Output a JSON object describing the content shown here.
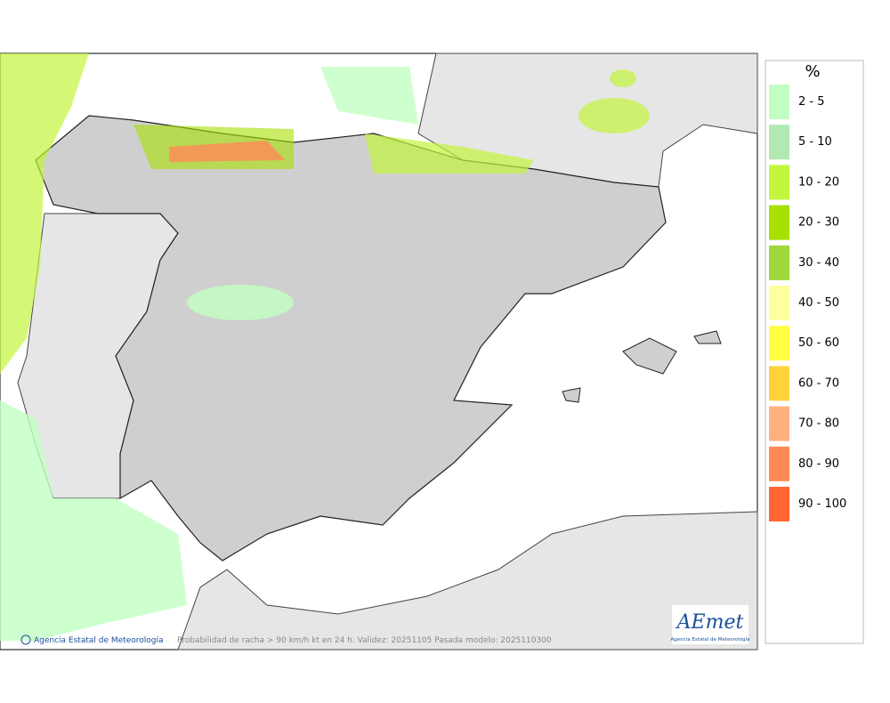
{
  "legend": {
    "title": "%",
    "items": [
      {
        "label": "2 - 5",
        "color": "#c2ffc2"
      },
      {
        "label": "5 - 10",
        "color": "#b2e8b2"
      },
      {
        "label": "10 - 20",
        "color": "#c2f53c"
      },
      {
        "label": "20 - 30",
        "color": "#a8e000"
      },
      {
        "label": "30 - 40",
        "color": "#9fd83c"
      },
      {
        "label": "40 - 50",
        "color": "#ffff9e"
      },
      {
        "label": "50 - 60",
        "color": "#ffff44"
      },
      {
        "label": "60 - 70",
        "color": "#ffd23c"
      },
      {
        "label": "70 - 80",
        "color": "#ffb080"
      },
      {
        "label": "80 - 90",
        "color": "#ff8a58"
      },
      {
        "label": "90 - 100",
        "color": "#ff6633"
      }
    ]
  },
  "footer": {
    "credit": "Agencia Estatal de Meteorología",
    "caption": "Probabilidad de racha > 90 km/h kt en 24 h. Validez: 20251105 Pasada modelo: 2025110300"
  },
  "logo": {
    "name": "AEmet",
    "subtitle": "Agencia Estatal de Meteorología"
  }
}
